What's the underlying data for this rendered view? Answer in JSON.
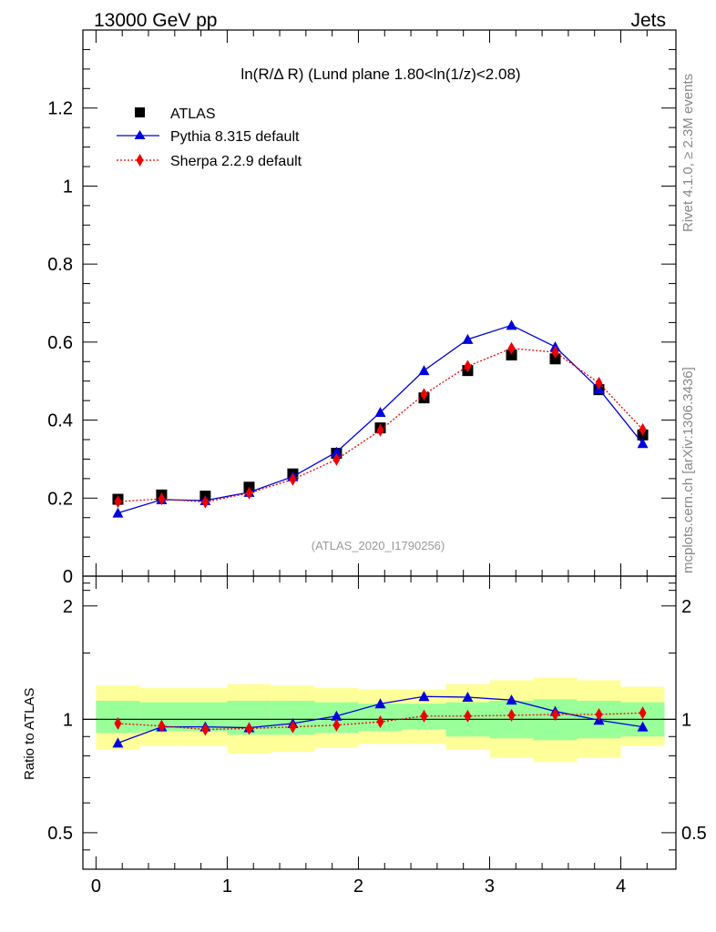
{
  "header": {
    "left": "13000 GeV pp",
    "right": "Jets"
  },
  "side_labels": {
    "rivet": "Rivet 4.1.0, ≥ 2.3M events",
    "mcplots": "mcplots.cern.ch [arXiv:1306.3436]"
  },
  "chart_data": {
    "type": "line",
    "title": "ln(R/Δ R) (Lund plane 1.80<ln(1/z)<2.08)",
    "watermark": "(ATLAS_2020_I1790256)",
    "xlim": [
      -0.1,
      4.42
    ],
    "x_ticks": [
      "0",
      "1",
      "2",
      "3",
      "4"
    ],
    "main": {
      "ylim": [
        0,
        1.4
      ],
      "y_ticks": [
        "0",
        "0.2",
        "0.4",
        "0.6",
        "0.8",
        "1",
        "1.2"
      ],
      "x": [
        0.167,
        0.5,
        0.833,
        1.167,
        1.5,
        1.833,
        2.167,
        2.5,
        2.833,
        3.167,
        3.5,
        3.833,
        4.167
      ],
      "series": [
        {
          "name": "ATLAS",
          "color": "#000000",
          "marker": "square",
          "values": [
            0.197,
            0.208,
            0.205,
            0.228,
            0.262,
            0.315,
            0.38,
            0.457,
            0.527,
            0.567,
            0.557,
            0.478,
            0.362
          ]
        },
        {
          "name": "Pythia 8.315 default",
          "color": "#0000dd",
          "marker": "triangle",
          "line": "solid",
          "values": [
            0.162,
            0.196,
            0.194,
            0.215,
            0.255,
            0.318,
            0.42,
            0.527,
            0.607,
            0.643,
            0.588,
            0.48,
            0.34
          ]
        },
        {
          "name": "Sherpa 2.2.9 default",
          "color": "#ee0000",
          "marker": "diamond",
          "line": "dotted",
          "values": [
            0.191,
            0.198,
            0.19,
            0.213,
            0.248,
            0.299,
            0.374,
            0.466,
            0.538,
            0.584,
            0.574,
            0.495,
            0.376
          ]
        }
      ]
    },
    "ratio": {
      "ylabel": "Ratio to ATLAS",
      "ylim": [
        0.4,
        2.4
      ],
      "log_scale": true,
      "y_tick_labels": [
        "0.5",
        "1",
        "2"
      ],
      "y_tick_values": [
        0.5,
        1,
        2
      ],
      "bands": {
        "x_edges": [
          0,
          0.333,
          0.667,
          1.0,
          1.333,
          1.667,
          2.0,
          2.333,
          2.667,
          3.0,
          3.333,
          3.667,
          4.0,
          4.333
        ],
        "green_color": "#99ff99",
        "yellow_color": "#ffff99",
        "green_lo": [
          0.92,
          0.93,
          0.93,
          0.91,
          0.91,
          0.92,
          0.93,
          0.94,
          0.9,
          0.89,
          0.88,
          0.89,
          0.9
        ],
        "green_hi": [
          1.12,
          1.11,
          1.11,
          1.12,
          1.12,
          1.11,
          1.1,
          1.1,
          1.11,
          1.12,
          1.13,
          1.12,
          1.11
        ],
        "yellow_lo": [
          0.83,
          0.85,
          0.85,
          0.81,
          0.82,
          0.84,
          0.86,
          0.86,
          0.83,
          0.79,
          0.77,
          0.79,
          0.85
        ],
        "yellow_hi": [
          1.23,
          1.21,
          1.21,
          1.24,
          1.23,
          1.21,
          1.2,
          1.2,
          1.24,
          1.27,
          1.29,
          1.27,
          1.22
        ]
      },
      "series": [
        {
          "name": "Pythia 8.315 default",
          "color": "#0000dd",
          "marker": "triangle",
          "line": "solid",
          "values": [
            0.865,
            0.955,
            0.955,
            0.95,
            0.975,
            1.02,
            1.1,
            1.15,
            1.145,
            1.125,
            1.05,
            0.995,
            0.955
          ]
        },
        {
          "name": "Sherpa 2.2.9 default",
          "color": "#ee0000",
          "marker": "diamond",
          "line": "dotted",
          "values": [
            0.975,
            0.96,
            0.94,
            0.945,
            0.955,
            0.965,
            0.985,
            1.02,
            1.02,
            1.025,
            1.03,
            1.03,
            1.04
          ]
        }
      ]
    }
  }
}
